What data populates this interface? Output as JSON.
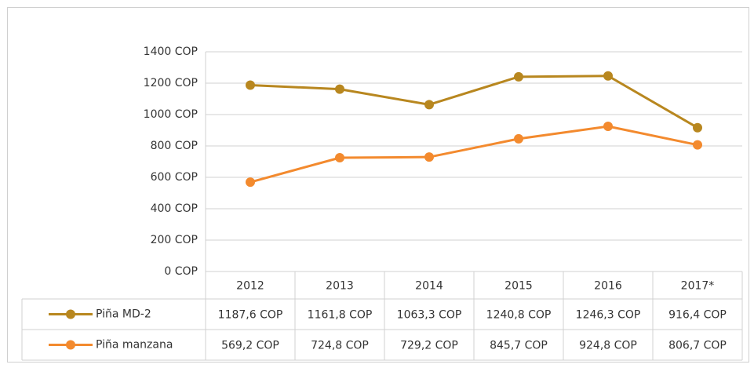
{
  "chart_data": {
    "type": "line",
    "categories": [
      "2012",
      "2013",
      "2014",
      "2015",
      "2016",
      "2017*"
    ],
    "series": [
      {
        "name": "Piña MD-2",
        "color": "#b8871f",
        "values": [
          1187.6,
          1161.8,
          1063.3,
          1240.8,
          1246.3,
          916.4
        ],
        "value_labels": [
          "1187,6 COP",
          "1161,8 COP",
          "1063,3 COP",
          "1240,8 COP",
          "1246,3 COP",
          "916,4 COP"
        ]
      },
      {
        "name": "Piña manzana",
        "color": "#f38a2e",
        "values": [
          569.2,
          724.8,
          729.2,
          845.7,
          924.8,
          806.7
        ],
        "value_labels": [
          "569,2 COP",
          "724,8 COP",
          "729,2 COP",
          "845,7 COP",
          "924,8 COP",
          "806,7 COP"
        ]
      }
    ],
    "ylim": [
      0,
      1400
    ],
    "yticks": [
      {
        "value": 0,
        "label": "0 COP"
      },
      {
        "value": 200,
        "label": "200 COP"
      },
      {
        "value": 400,
        "label": "400 COP"
      },
      {
        "value": 600,
        "label": "600 COP"
      },
      {
        "value": 800,
        "label": "800 COP"
      },
      {
        "value": 1000,
        "label": "1000 COP"
      },
      {
        "value": 1200,
        "label": "1200 COP"
      },
      {
        "value": 1400,
        "label": "1400 COP"
      }
    ],
    "grid": true
  }
}
